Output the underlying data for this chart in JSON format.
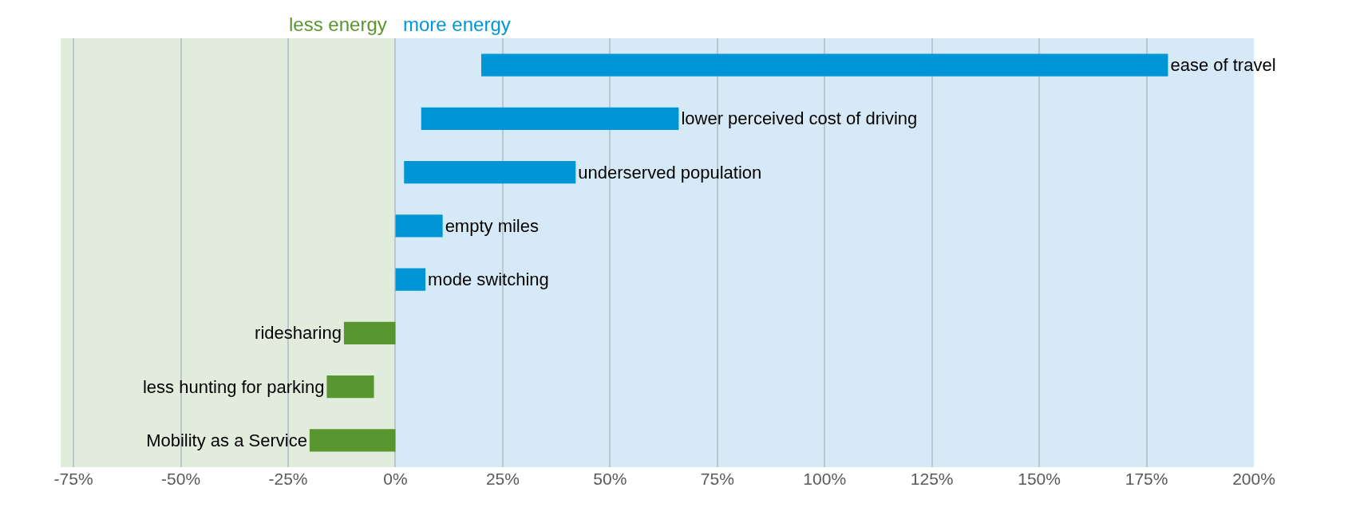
{
  "chart_data": {
    "type": "bar",
    "orientation": "horizontal",
    "categories": [
      "ease of travel",
      "lower perceived cost of driving",
      "underserved population",
      "empty miles",
      "mode switching",
      "ridesharing",
      "less hunting for parking",
      "Mobility as a Service"
    ],
    "base": [
      20,
      6,
      2,
      0,
      0,
      0,
      -5,
      0
    ],
    "values": [
      160,
      60,
      40,
      11,
      7,
      -12,
      -11,
      -20
    ],
    "colors": [
      "#0096d6",
      "#0096d6",
      "#0096d6",
      "#0096d6",
      "#0096d6",
      "#5a962f",
      "#5a962f",
      "#5a962f"
    ],
    "xlim": [
      -78,
      200
    ],
    "xticks": [
      {
        "value": -75,
        "label": "-75%"
      },
      {
        "value": -50,
        "label": "-50%"
      },
      {
        "value": -25,
        "label": "-25%"
      },
      {
        "value": 0,
        "label": "0%"
      },
      {
        "value": 25,
        "label": "25%"
      },
      {
        "value": 50,
        "label": "50%"
      },
      {
        "value": 75,
        "label": "75%"
      },
      {
        "value": 100,
        "label": "100%"
      },
      {
        "value": 125,
        "label": "125%"
      },
      {
        "value": 150,
        "label": "150%"
      },
      {
        "value": 175,
        "label": "175%"
      },
      {
        "value": 200,
        "label": "200%"
      }
    ],
    "bands": [
      {
        "axis": "x",
        "from": -78,
        "to": 0,
        "label": "less energy",
        "color": "#e2ecdc"
      },
      {
        "axis": "x",
        "from": 0,
        "to": 200,
        "label": "more energy",
        "color": "#d5eaf6"
      }
    ],
    "grid": "x",
    "tick_labels": "x"
  }
}
